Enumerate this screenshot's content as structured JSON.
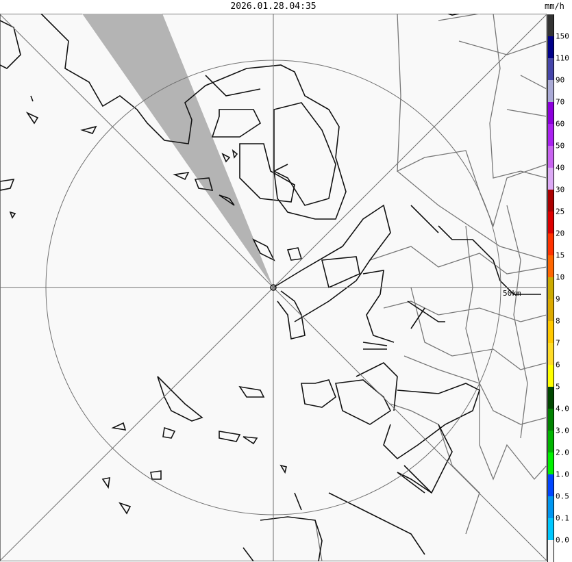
{
  "header": {
    "timestamp": "2026.01.28.04:35",
    "unit": "mm/h"
  },
  "map": {
    "range_ring_label": "50km",
    "background": "#f9f9f9",
    "echo_sector_color": "#b4b4b4"
  },
  "legend": {
    "segments": [
      {
        "color": "#333333",
        "label": "150"
      },
      {
        "color": "#000088",
        "label": "110"
      },
      {
        "color": "#4646aa",
        "label": "90"
      },
      {
        "color": "#aaaad6",
        "label": "70"
      },
      {
        "color": "#8c00dc",
        "label": "60"
      },
      {
        "color": "#aa22f0",
        "label": "50"
      },
      {
        "color": "#c864f0",
        "label": "40"
      },
      {
        "color": "#dcaaf5",
        "label": "30"
      },
      {
        "color": "#aa0000",
        "label": "25"
      },
      {
        "color": "#dc0000",
        "label": "20"
      },
      {
        "color": "#ff3200",
        "label": "15"
      },
      {
        "color": "#ff6600",
        "label": "10"
      },
      {
        "color": "#ccaa00",
        "label": "9"
      },
      {
        "color": "#dcaa00",
        "label": "8"
      },
      {
        "color": "#ffc800",
        "label": "7"
      },
      {
        "color": "#ffdc28",
        "label": "6"
      },
      {
        "color": "#ffff00",
        "label": "5"
      },
      {
        "color": "#004600",
        "label": "4.0"
      },
      {
        "color": "#008200",
        "label": "3.0"
      },
      {
        "color": "#00b400",
        "label": "2.0"
      },
      {
        "color": "#00f000",
        "label": "1.0"
      },
      {
        "color": "#0046ff",
        "label": "0.5"
      },
      {
        "color": "#0096f0",
        "label": "0.1"
      },
      {
        "color": "#00c8ff",
        "label": "0.0"
      },
      {
        "color": "#f9f9f9",
        "label": ""
      }
    ]
  }
}
